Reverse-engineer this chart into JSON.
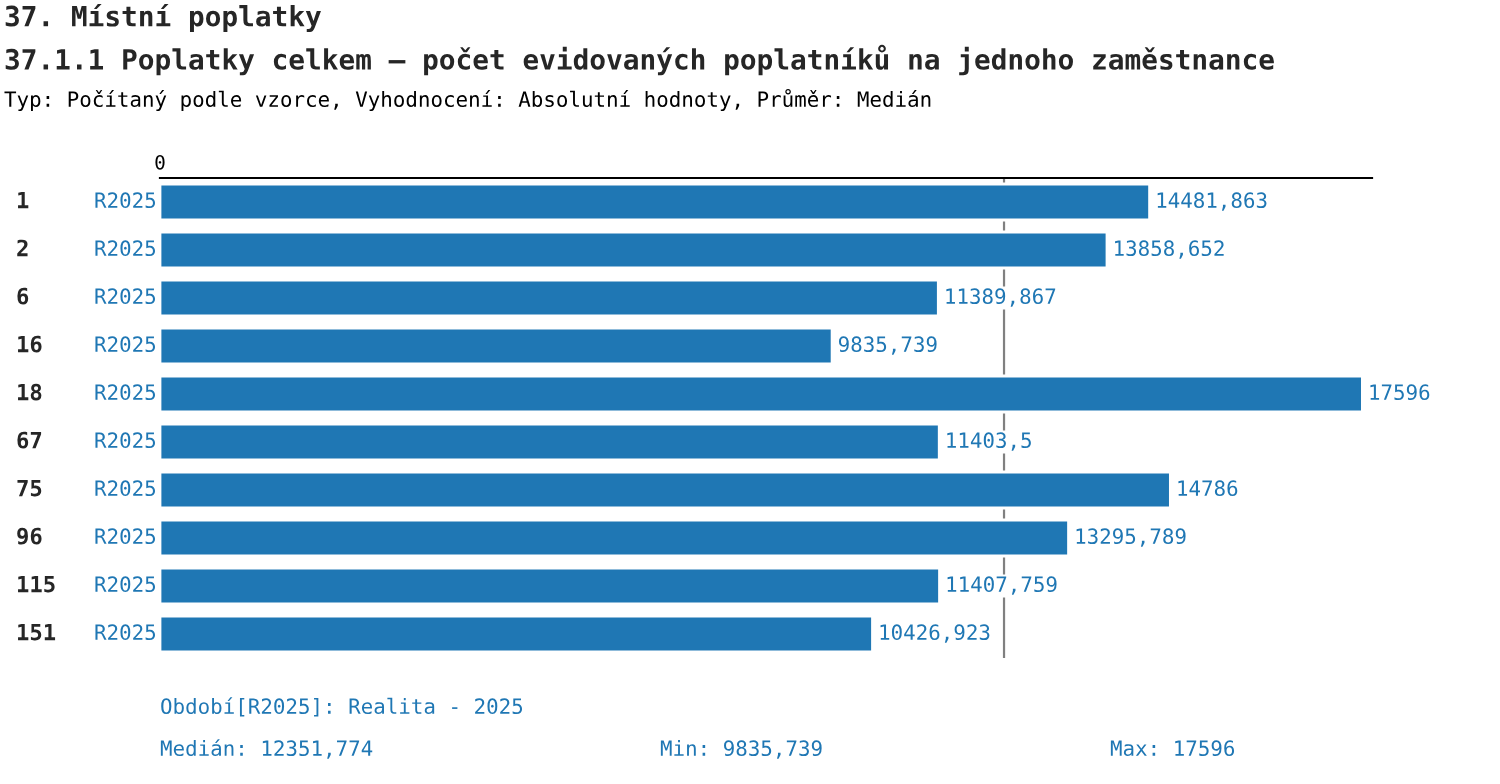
{
  "chart_data": {
    "type": "bar",
    "orientation": "horizontal",
    "title": "37. Místní poplatky",
    "subtitle": "37.1.1 Poplatky celkem – počet evidovaných poplatníků na jednoho zaměstnance",
    "categories": [
      "1",
      "2",
      "6",
      "16",
      "18",
      "67",
      "75",
      "96",
      "115",
      "151"
    ],
    "series": [
      {
        "name": "R2025",
        "color": "#1f77b4",
        "values": [
          14481.863,
          13858.652,
          11389.867,
          9835.739,
          17596,
          11403.5,
          14786,
          13295.789,
          11407.759,
          10426.923
        ],
        "value_labels": [
          "14481,863",
          "13858,652",
          "11389,867",
          "9835,739",
          "17596",
          "11403,5",
          "14786",
          "13295,789",
          "11407,759",
          "10426,923"
        ]
      }
    ],
    "ref_lines": [
      {
        "axis": "x",
        "value": 12351.774,
        "color": "#808080"
      }
    ],
    "annotations": [
      "0",
      "Typ: Počítaný podle vzorce, Vyhodnocení: Absolutní hodnoty, Průměr: Medián",
      "Období[R2025]: Realita - 2025",
      "Medián: 12351,774",
      "Min: 9835,739",
      "Max: 17596"
    ],
    "grid": false,
    "legend": false
  }
}
